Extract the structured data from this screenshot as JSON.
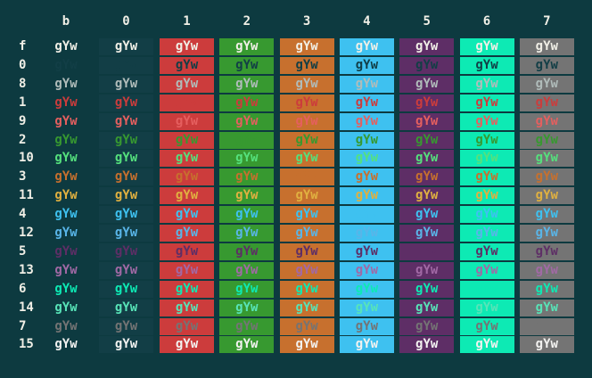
{
  "terminal": {
    "cell_text": "gYw",
    "columns": [
      {
        "label": "b",
        "bg": "bg"
      },
      {
        "label": "0",
        "bg": "0"
      },
      {
        "label": "1",
        "bg": "1"
      },
      {
        "label": "2",
        "bg": "2"
      },
      {
        "label": "3",
        "bg": "3"
      },
      {
        "label": "4",
        "bg": "4"
      },
      {
        "label": "5",
        "bg": "5"
      },
      {
        "label": "6",
        "bg": "6"
      },
      {
        "label": "7",
        "bg": "7"
      }
    ],
    "rows": [
      {
        "label": "f",
        "color": "fg"
      },
      {
        "label": "0",
        "color": "0"
      },
      {
        "label": "8",
        "color": "8"
      },
      {
        "label": "1",
        "color": "1"
      },
      {
        "label": "9",
        "color": "9"
      },
      {
        "label": "2",
        "color": "2"
      },
      {
        "label": "10",
        "color": "10"
      },
      {
        "label": "3",
        "color": "3"
      },
      {
        "label": "11",
        "color": "11"
      },
      {
        "label": "4",
        "color": "4"
      },
      {
        "label": "12",
        "color": "12"
      },
      {
        "label": "5",
        "color": "5"
      },
      {
        "label": "13",
        "color": "13"
      },
      {
        "label": "6",
        "color": "6"
      },
      {
        "label": "14",
        "color": "14"
      },
      {
        "label": "7",
        "color": "7"
      },
      {
        "label": "15",
        "color": "15"
      }
    ],
    "palette": {
      "bg": "#0d3a40",
      "fg": "#f0efe6",
      "0": "#123e46",
      "1": "#cc3c3c",
      "2": "#379930",
      "3": "#c7702e",
      "4": "#3ec1f0",
      "5": "#5e2e66",
      "6": "#0deab4",
      "7": "#747474",
      "8": "#b0bcba",
      "9": "#e55f5f",
      "10": "#55e17d",
      "11": "#e0b040",
      "12": "#59b5e8",
      "13": "#a169a5",
      "14": "#58e4b8",
      "15": "#f2f2f0"
    }
  }
}
